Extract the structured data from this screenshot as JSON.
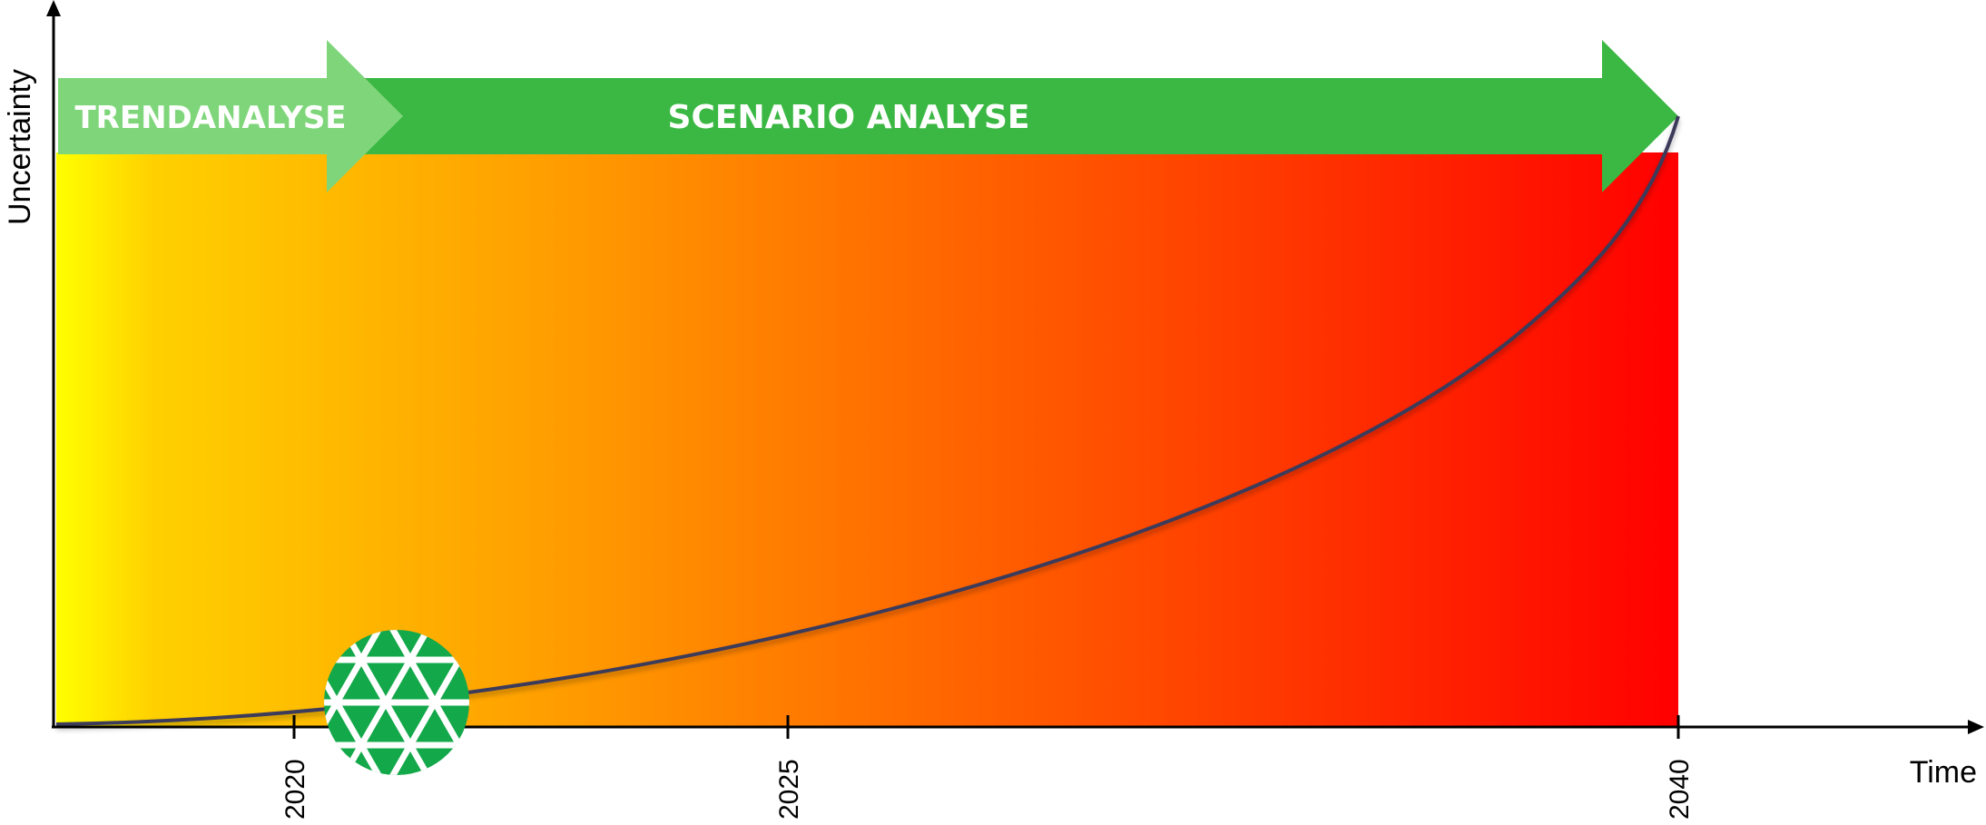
{
  "y_axis": {
    "label": "Uncertainty"
  },
  "x_axis": {
    "label": "Time",
    "ticks": [
      "2020",
      "2025",
      "2040"
    ]
  },
  "phases": {
    "trend": {
      "label": "TRENDANALYSE",
      "color": "#7fd67a"
    },
    "scenario": {
      "label": "SCENARIO ANALYSE",
      "color": "#3bb843"
    }
  },
  "gradient": {
    "start": "#ffff00",
    "middle": "#ff9f00",
    "end": "#ff0000"
  },
  "curve": {
    "color": "#3c3a5a"
  },
  "logo": {
    "icon": "geodesic-sphere-icon",
    "color": "#13a84a"
  }
}
